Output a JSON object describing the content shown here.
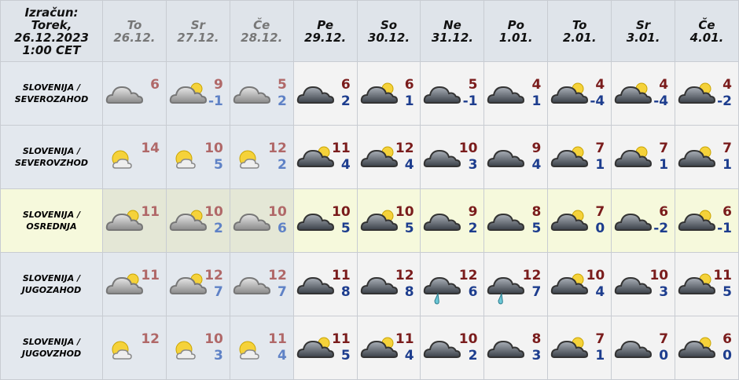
{
  "header": {
    "computed_label": [
      "Izračun:",
      "Torek,",
      "26.12.2023",
      "1:00 CET"
    ]
  },
  "days": [
    {
      "day": "To",
      "date": "26.12.",
      "past": true
    },
    {
      "day": "Sr",
      "date": "27.12.",
      "past": true
    },
    {
      "day": "Če",
      "date": "28.12.",
      "past": true
    },
    {
      "day": "Pe",
      "date": "29.12.",
      "past": false
    },
    {
      "day": "So",
      "date": "30.12.",
      "past": false
    },
    {
      "day": "Ne",
      "date": "31.12.",
      "past": false
    },
    {
      "day": "Po",
      "date": "1.01.",
      "past": false
    },
    {
      "day": "To",
      "date": "2.01.",
      "past": false
    },
    {
      "day": "Sr",
      "date": "3.01.",
      "past": false
    },
    {
      "day": "Če",
      "date": "4.01.",
      "past": false
    }
  ],
  "rows": [
    {
      "region": [
        "SLOVENIJA /",
        "SEVEROZAHOD"
      ],
      "highlight": false,
      "cells": [
        {
          "icon": "cloudy",
          "max": "6",
          "min": ""
        },
        {
          "icon": "partly-cloudy",
          "max": "9",
          "min": "-1"
        },
        {
          "icon": "cloudy",
          "max": "5",
          "min": "2"
        },
        {
          "icon": "cloudy",
          "max": "6",
          "min": "2"
        },
        {
          "icon": "partly-cloudy",
          "max": "6",
          "min": "1"
        },
        {
          "icon": "cloudy",
          "max": "5",
          "min": "-1"
        },
        {
          "icon": "cloudy",
          "max": "4",
          "min": "1"
        },
        {
          "icon": "partly-cloudy",
          "max": "4",
          "min": "-4"
        },
        {
          "icon": "partly-cloudy",
          "max": "4",
          "min": "-4"
        },
        {
          "icon": "partly-cloudy",
          "max": "4",
          "min": "-2"
        }
      ]
    },
    {
      "region": [
        "SLOVENIJA /",
        "SEVEROVZHOD"
      ],
      "highlight": false,
      "cells": [
        {
          "icon": "sun-cloud",
          "max": "14",
          "min": ""
        },
        {
          "icon": "sun-cloud",
          "max": "10",
          "min": "5"
        },
        {
          "icon": "sun-cloud",
          "max": "12",
          "min": "2"
        },
        {
          "icon": "partly-cloudy",
          "max": "11",
          "min": "4"
        },
        {
          "icon": "partly-cloudy",
          "max": "12",
          "min": "4"
        },
        {
          "icon": "cloudy",
          "max": "10",
          "min": "3"
        },
        {
          "icon": "cloudy",
          "max": "9",
          "min": "4"
        },
        {
          "icon": "partly-cloudy",
          "max": "7",
          "min": "1"
        },
        {
          "icon": "partly-cloudy",
          "max": "7",
          "min": "1"
        },
        {
          "icon": "partly-cloudy",
          "max": "7",
          "min": "1"
        }
      ]
    },
    {
      "region": [
        "SLOVENIJA /",
        "OSREDNJA"
      ],
      "highlight": true,
      "cells": [
        {
          "icon": "partly-cloudy",
          "max": "11",
          "min": ""
        },
        {
          "icon": "partly-cloudy",
          "max": "10",
          "min": "2"
        },
        {
          "icon": "cloudy",
          "max": "10",
          "min": "6"
        },
        {
          "icon": "cloudy",
          "max": "10",
          "min": "5"
        },
        {
          "icon": "partly-cloudy",
          "max": "10",
          "min": "5"
        },
        {
          "icon": "cloudy",
          "max": "9",
          "min": "2"
        },
        {
          "icon": "cloudy",
          "max": "8",
          "min": "5"
        },
        {
          "icon": "partly-cloudy",
          "max": "7",
          "min": "0"
        },
        {
          "icon": "cloudy",
          "max": "6",
          "min": "-2"
        },
        {
          "icon": "partly-cloudy",
          "max": "6",
          "min": "-1"
        }
      ]
    },
    {
      "region": [
        "SLOVENIJA /",
        "JUGOZAHOD"
      ],
      "highlight": false,
      "cells": [
        {
          "icon": "partly-cloudy",
          "max": "11",
          "min": ""
        },
        {
          "icon": "partly-cloudy",
          "max": "12",
          "min": "7"
        },
        {
          "icon": "cloudy",
          "max": "12",
          "min": "7"
        },
        {
          "icon": "cloudy",
          "max": "11",
          "min": "8"
        },
        {
          "icon": "cloudy",
          "max": "12",
          "min": "8"
        },
        {
          "icon": "rain",
          "max": "12",
          "min": "6"
        },
        {
          "icon": "rain",
          "max": "12",
          "min": "7"
        },
        {
          "icon": "partly-cloudy",
          "max": "10",
          "min": "4"
        },
        {
          "icon": "cloudy",
          "max": "10",
          "min": "3"
        },
        {
          "icon": "partly-cloudy",
          "max": "11",
          "min": "5"
        }
      ]
    },
    {
      "region": [
        "SLOVENIJA /",
        "JUGOVZHOD"
      ],
      "highlight": false,
      "cells": [
        {
          "icon": "sun-cloud",
          "max": "12",
          "min": ""
        },
        {
          "icon": "sun-cloud",
          "max": "10",
          "min": "3"
        },
        {
          "icon": "sun-cloud",
          "max": "11",
          "min": "4"
        },
        {
          "icon": "partly-cloudy",
          "max": "11",
          "min": "5"
        },
        {
          "icon": "partly-cloudy",
          "max": "11",
          "min": "4"
        },
        {
          "icon": "cloudy",
          "max": "10",
          "min": "2"
        },
        {
          "icon": "cloudy",
          "max": "8",
          "min": "3"
        },
        {
          "icon": "partly-cloudy",
          "max": "7",
          "min": "1"
        },
        {
          "icon": "cloudy",
          "max": "7",
          "min": "0"
        },
        {
          "icon": "partly-cloudy",
          "max": "6",
          "min": "0"
        }
      ]
    }
  ]
}
